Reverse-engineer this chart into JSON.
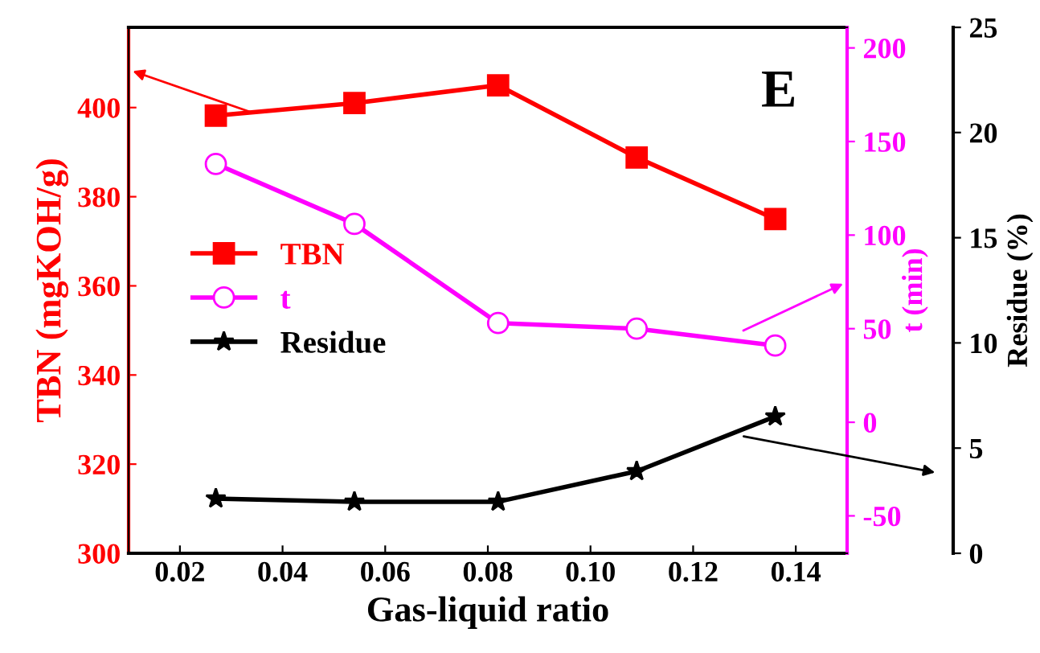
{
  "chart_data": {
    "type": "line",
    "xlabel": "Gas-liquid ratio",
    "ylabel": "TBN (mgKOH/g)",
    "y2label": "t (min)",
    "y3label": "Residue (%)",
    "x": [
      0.027,
      0.054,
      0.082,
      0.109,
      0.136
    ],
    "xlim": [
      0.01,
      0.15
    ],
    "xticks": [
      0.02,
      0.04,
      0.06,
      0.08,
      {
        "value": 0.1,
        "label": "0.10"
      },
      0.12,
      0.14
    ],
    "ylim": [
      300,
      418
    ],
    "yticks": [
      300,
      320,
      340,
      360,
      380,
      400
    ],
    "y2lim": [
      -70,
      211
    ],
    "y2ticks": [
      -50,
      0,
      50,
      100,
      150,
      200
    ],
    "y3lim": [
      0,
      25
    ],
    "y3ticks": [
      0,
      5,
      10,
      15,
      20,
      25
    ],
    "series": [
      {
        "name": "TBN",
        "color": "#ff0000",
        "marker": "square",
        "values": [
          398.2,
          401,
          405,
          388.8,
          375
        ]
      },
      {
        "name": "t",
        "color": "#ff00ff",
        "marker": "circle",
        "axis": "y2",
        "values": [
          138,
          106,
          53,
          50,
          41
        ]
      },
      {
        "name": "Residue",
        "color": "#000000",
        "marker": "star",
        "axis": "y3",
        "values": [
          2.6,
          2.45,
          2.45,
          3.9,
          6.5
        ]
      }
    ],
    "annotations": [
      "E"
    ],
    "legend": "center left",
    "grid": false,
    "line_style": "solid"
  }
}
